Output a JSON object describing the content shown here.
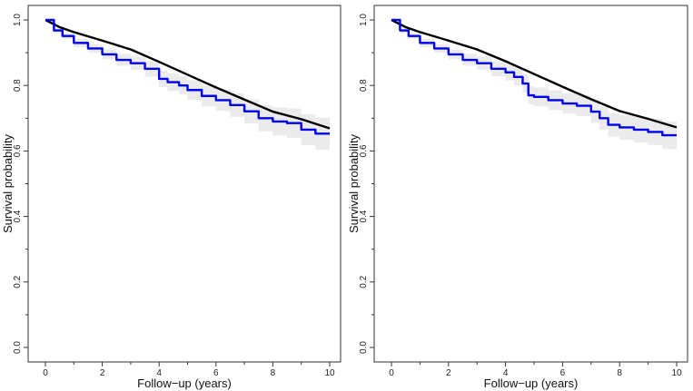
{
  "chart_data": [
    {
      "type": "line",
      "title": "",
      "xlabel": "Follow−up (years)",
      "ylabel": "Survival probability",
      "xlim": [
        0,
        10
      ],
      "ylim": [
        0,
        1
      ],
      "x_ticks": [
        "0",
        "2",
        "4",
        "6",
        "8",
        "10"
      ],
      "y_ticks": [
        "0.0",
        "0.2",
        "0.4",
        "0.6",
        "0.8",
        "1.0"
      ],
      "grid": false,
      "legend": "none",
      "series": [
        {
          "color": "#000000",
          "style": "smooth",
          "x": [
            0,
            0.5,
            1,
            2,
            3,
            4,
            5,
            6,
            7,
            8,
            9,
            10
          ],
          "y": [
            1.0,
            0.978,
            0.963,
            0.937,
            0.91,
            0.872,
            0.833,
            0.794,
            0.757,
            0.72,
            0.697,
            0.669
          ]
        },
        {
          "color": "#0000ee",
          "style": "step",
          "x": [
            0,
            0.3,
            0.6,
            1,
            1.5,
            2,
            2.5,
            3,
            3.5,
            4,
            4.3,
            4.7,
            5,
            5.5,
            6,
            6.5,
            7,
            7.5,
            8,
            8.5,
            9,
            9.5,
            10
          ],
          "y": [
            1.0,
            0.968,
            0.951,
            0.93,
            0.913,
            0.895,
            0.878,
            0.868,
            0.851,
            0.82,
            0.81,
            0.8,
            0.786,
            0.768,
            0.755,
            0.74,
            0.721,
            0.7,
            0.69,
            0.685,
            0.665,
            0.653,
            0.653
          ],
          "ci_lower": [
            1.0,
            0.96,
            0.942,
            0.918,
            0.9,
            0.88,
            0.86,
            0.848,
            0.827,
            0.795,
            0.783,
            0.772,
            0.756,
            0.736,
            0.722,
            0.704,
            0.684,
            0.66,
            0.647,
            0.64,
            0.618,
            0.604,
            0.6
          ],
          "ci_upper": [
            1.0,
            0.976,
            0.96,
            0.942,
            0.926,
            0.91,
            0.896,
            0.888,
            0.875,
            0.845,
            0.837,
            0.828,
            0.816,
            0.8,
            0.788,
            0.776,
            0.758,
            0.74,
            0.733,
            0.73,
            0.712,
            0.702,
            0.706
          ]
        }
      ]
    },
    {
      "type": "line",
      "title": "",
      "xlabel": "Follow−up (years)",
      "ylabel": "Survival probability",
      "xlim": [
        0,
        10
      ],
      "ylim": [
        0,
        1
      ],
      "x_ticks": [
        "0",
        "2",
        "4",
        "6",
        "8",
        "10"
      ],
      "y_ticks": [
        "0.0",
        "0.2",
        "0.4",
        "0.6",
        "0.8",
        "1.0"
      ],
      "grid": false,
      "legend": "none",
      "series": [
        {
          "color": "#000000",
          "style": "smooth",
          "x": [
            0,
            0.5,
            1,
            2,
            3,
            4,
            5,
            6,
            7,
            8,
            9,
            10
          ],
          "y": [
            1.0,
            0.978,
            0.963,
            0.937,
            0.91,
            0.874,
            0.835,
            0.796,
            0.758,
            0.722,
            0.698,
            0.672
          ]
        },
        {
          "color": "#0000ee",
          "style": "step",
          "x": [
            0,
            0.3,
            0.6,
            1,
            1.5,
            2,
            2.5,
            3,
            3.5,
            4,
            4.3,
            4.6,
            4.8,
            5,
            5.5,
            6,
            6.5,
            7,
            7.3,
            7.6,
            8,
            8.5,
            9,
            9.5,
            10
          ],
          "y": [
            1.0,
            0.968,
            0.951,
            0.93,
            0.913,
            0.895,
            0.878,
            0.868,
            0.851,
            0.84,
            0.826,
            0.806,
            0.77,
            0.765,
            0.755,
            0.745,
            0.738,
            0.72,
            0.7,
            0.68,
            0.672,
            0.665,
            0.658,
            0.648,
            0.648
          ],
          "ci_lower": [
            1.0,
            0.96,
            0.942,
            0.918,
            0.9,
            0.88,
            0.86,
            0.848,
            0.828,
            0.815,
            0.8,
            0.779,
            0.742,
            0.736,
            0.725,
            0.714,
            0.706,
            0.686,
            0.665,
            0.644,
            0.634,
            0.626,
            0.618,
            0.606,
            0.602
          ],
          "ci_upper": [
            1.0,
            0.976,
            0.96,
            0.942,
            0.926,
            0.91,
            0.896,
            0.888,
            0.874,
            0.865,
            0.852,
            0.833,
            0.798,
            0.794,
            0.785,
            0.776,
            0.77,
            0.754,
            0.735,
            0.716,
            0.71,
            0.704,
            0.698,
            0.69,
            0.694
          ]
        }
      ]
    }
  ]
}
